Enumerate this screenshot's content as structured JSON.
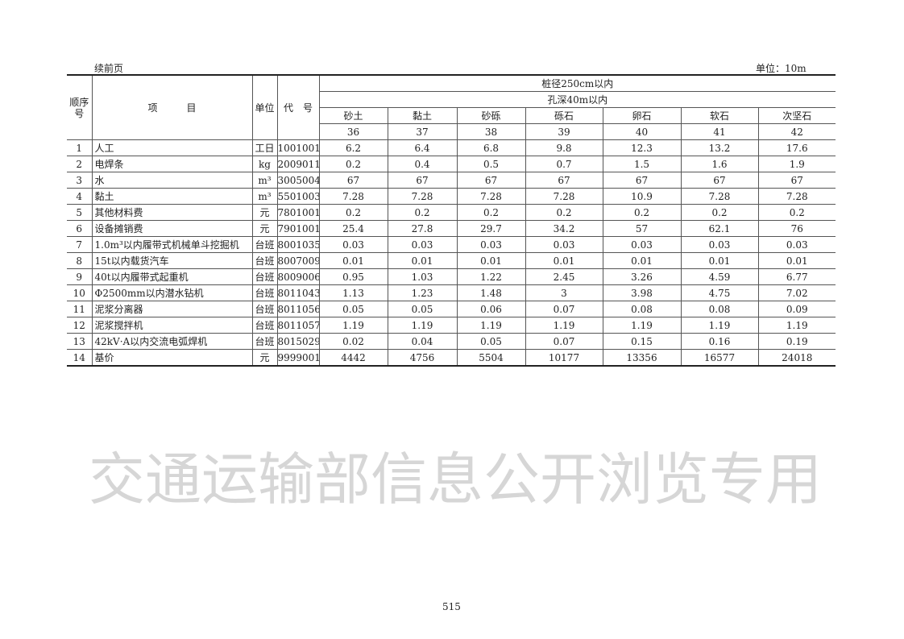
{
  "header": {
    "continued": "续前页",
    "unit": "单位：10m"
  },
  "table": {
    "col_seq": "顺序号",
    "col_item": "项　　　目",
    "col_unit": "单位",
    "col_code": "代　号",
    "group1": "桩径250cm以内",
    "group2": "孔深40m以内",
    "soil_types": [
      "砂土",
      "黏土",
      "砂砾",
      "砾石",
      "卵石",
      "软石",
      "次坚石"
    ],
    "col_numbers": [
      "36",
      "37",
      "38",
      "39",
      "40",
      "41",
      "42"
    ],
    "rows": [
      {
        "seq": "1",
        "item": "人工",
        "unit": "工日",
        "code": "1001001",
        "values": [
          "6.2",
          "6.4",
          "6.8",
          "9.8",
          "12.3",
          "13.2",
          "17.6"
        ]
      },
      {
        "seq": "2",
        "item": "电焊条",
        "unit": "kg",
        "code": "2009011",
        "values": [
          "0.2",
          "0.4",
          "0.5",
          "0.7",
          "1.5",
          "1.6",
          "1.9"
        ]
      },
      {
        "seq": "3",
        "item": "水",
        "unit": "m³",
        "code": "3005004",
        "values": [
          "67",
          "67",
          "67",
          "67",
          "67",
          "67",
          "67"
        ]
      },
      {
        "seq": "4",
        "item": "黏土",
        "unit": "m³",
        "code": "5501003",
        "values": [
          "7.28",
          "7.28",
          "7.28",
          "7.28",
          "10.9",
          "7.28",
          "7.28"
        ]
      },
      {
        "seq": "5",
        "item": "其他材料费",
        "unit": "元",
        "code": "7801001",
        "values": [
          "0.2",
          "0.2",
          "0.2",
          "0.2",
          "0.2",
          "0.2",
          "0.2"
        ]
      },
      {
        "seq": "6",
        "item": "设备摊销费",
        "unit": "元",
        "code": "7901001",
        "values": [
          "25.4",
          "27.8",
          "29.7",
          "34.2",
          "57",
          "62.1",
          "76"
        ]
      },
      {
        "seq": "7",
        "item": "1.0m³以内履带式机械单斗挖掘机",
        "unit": "台班",
        "code": "8001035",
        "values": [
          "0.03",
          "0.03",
          "0.03",
          "0.03",
          "0.03",
          "0.03",
          "0.03"
        ]
      },
      {
        "seq": "8",
        "item": "15t以内载货汽车",
        "unit": "台班",
        "code": "8007009",
        "values": [
          "0.01",
          "0.01",
          "0.01",
          "0.01",
          "0.01",
          "0.01",
          "0.01"
        ]
      },
      {
        "seq": "9",
        "item": "40t以内履带式起重机",
        "unit": "台班",
        "code": "8009006",
        "values": [
          "0.95",
          "1.03",
          "1.22",
          "2.45",
          "3.26",
          "4.59",
          "6.77"
        ]
      },
      {
        "seq": "10",
        "item": "Φ2500mm以内潜水钻机",
        "unit": "台班",
        "code": "8011043",
        "values": [
          "1.13",
          "1.23",
          "1.48",
          "3",
          "3.98",
          "4.75",
          "7.02"
        ]
      },
      {
        "seq": "11",
        "item": "泥浆分离器",
        "unit": "台班",
        "code": "8011056",
        "values": [
          "0.05",
          "0.05",
          "0.06",
          "0.07",
          "0.08",
          "0.08",
          "0.09"
        ]
      },
      {
        "seq": "12",
        "item": "泥浆搅拌机",
        "unit": "台班",
        "code": "8011057",
        "values": [
          "1.19",
          "1.19",
          "1.19",
          "1.19",
          "1.19",
          "1.19",
          "1.19"
        ]
      },
      {
        "seq": "13",
        "item": "42kV·A以内交流电弧焊机",
        "unit": "台班",
        "code": "8015029",
        "values": [
          "0.02",
          "0.04",
          "0.05",
          "0.07",
          "0.15",
          "0.16",
          "0.19"
        ]
      },
      {
        "seq": "14",
        "item": "基价",
        "unit": "元",
        "code": "9999001",
        "values": [
          "4442",
          "4756",
          "5504",
          "10177",
          "13356",
          "16577",
          "24018"
        ]
      }
    ]
  },
  "page_number": "515",
  "watermark": "交通运输部信息公开浏览专用"
}
